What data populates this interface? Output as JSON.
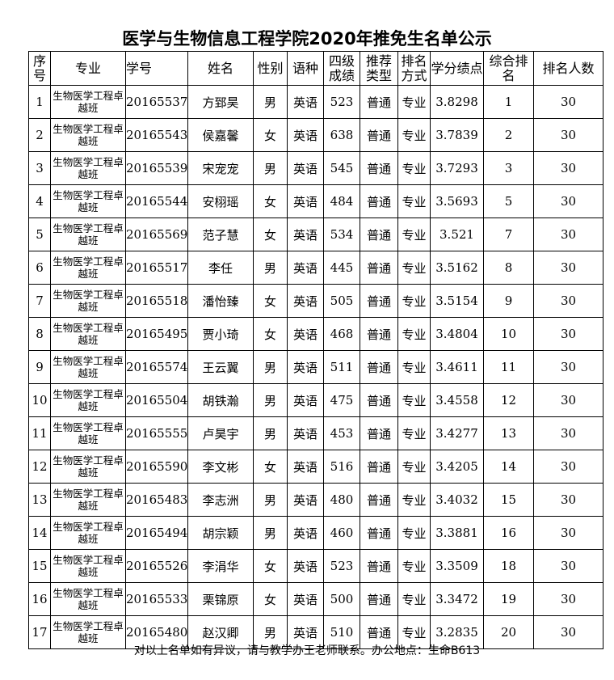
{
  "title": "医学与生物信息工程学院2020年推免生名单公示",
  "headers": [
    "序号",
    "专业",
    "学号",
    "姓名",
    "性别",
    "语种",
    "四级成绩",
    "推荐类型",
    "排名方式",
    "学分绩点",
    "综合排名",
    "排名人数"
  ],
  "rows": [
    [
      "1",
      "生物医学工程卓越班",
      "20165537",
      "方郅昊",
      "男",
      "英语",
      "523",
      "普通",
      "专业",
      "3.8298",
      "1",
      "30"
    ],
    [
      "2",
      "生物医学工程卓越班",
      "20165543",
      "侯嘉馨",
      "女",
      "英语",
      "638",
      "普通",
      "专业",
      "3.7839",
      "2",
      "30"
    ],
    [
      "3",
      "生物医学工程卓越班",
      "20165539",
      "宋宠宠",
      "男",
      "英语",
      "545",
      "普通",
      "专业",
      "3.7293",
      "3",
      "30"
    ],
    [
      "4",
      "生物医学工程卓越班",
      "20165544",
      "安栩瑶",
      "女",
      "英语",
      "484",
      "普通",
      "专业",
      "3.5693",
      "5",
      "30"
    ],
    [
      "5",
      "生物医学工程卓越班",
      "20165569",
      "范子慧",
      "女",
      "英语",
      "534",
      "普通",
      "专业",
      "3.521",
      "7",
      "30"
    ],
    [
      "6",
      "生物医学工程卓越班",
      "20165517",
      "李任",
      "男",
      "英语",
      "445",
      "普通",
      "专业",
      "3.5162",
      "8",
      "30"
    ],
    [
      "7",
      "生物医学工程卓越班",
      "20165518",
      "潘怡臻",
      "女",
      "英语",
      "505",
      "普通",
      "专业",
      "3.5154",
      "9",
      "30"
    ],
    [
      "8",
      "生物医学工程卓越班",
      "20165495",
      "贾小琦",
      "女",
      "英语",
      "468",
      "普通",
      "专业",
      "3.4804",
      "10",
      "30"
    ],
    [
      "9",
      "生物医学工程卓越班",
      "20165574",
      "王云翼",
      "男",
      "英语",
      "511",
      "普通",
      "专业",
      "3.4611",
      "11",
      "30"
    ],
    [
      "10",
      "生物医学工程卓越班",
      "20165504",
      "胡铁瀚",
      "男",
      "英语",
      "475",
      "普通",
      "专业",
      "3.4558",
      "12",
      "30"
    ],
    [
      "11",
      "生物医学工程卓越班",
      "20165555",
      "卢昊宇",
      "男",
      "英语",
      "453",
      "普通",
      "专业",
      "3.4277",
      "13",
      "30"
    ],
    [
      "12",
      "生物医学工程卓越班",
      "20165590",
      "李文彬",
      "女",
      "英语",
      "516",
      "普通",
      "专业",
      "3.4205",
      "14",
      "30"
    ],
    [
      "13",
      "生物医学工程卓越班",
      "20165483",
      "李志洲",
      "男",
      "英语",
      "480",
      "普通",
      "专业",
      "3.4032",
      "15",
      "30"
    ],
    [
      "14",
      "生物医学工程卓越班",
      "20165494",
      "胡宗颖",
      "男",
      "英语",
      "460",
      "普通",
      "专业",
      "3.3881",
      "16",
      "30"
    ],
    [
      "15",
      "生物医学工程卓越班",
      "20165526",
      "李涓华",
      "女",
      "英语",
      "523",
      "普通",
      "专业",
      "3.3509",
      "18",
      "30"
    ],
    [
      "16",
      "生物医学工程卓越班",
      "20165533",
      "栗锦原",
      "女",
      "英语",
      "500",
      "普通",
      "专业",
      "3.3472",
      "19",
      "30"
    ],
    [
      "17",
      "生物医学工程卓越班",
      "20165480",
      "赵汉卿",
      "男",
      "英语",
      "510",
      "普通",
      "专业",
      "3.2835",
      "20",
      "30"
    ]
  ],
  "footer": "对以上名单如有异议，请与教学办王老师联系。办公地点：生命B613"
}
